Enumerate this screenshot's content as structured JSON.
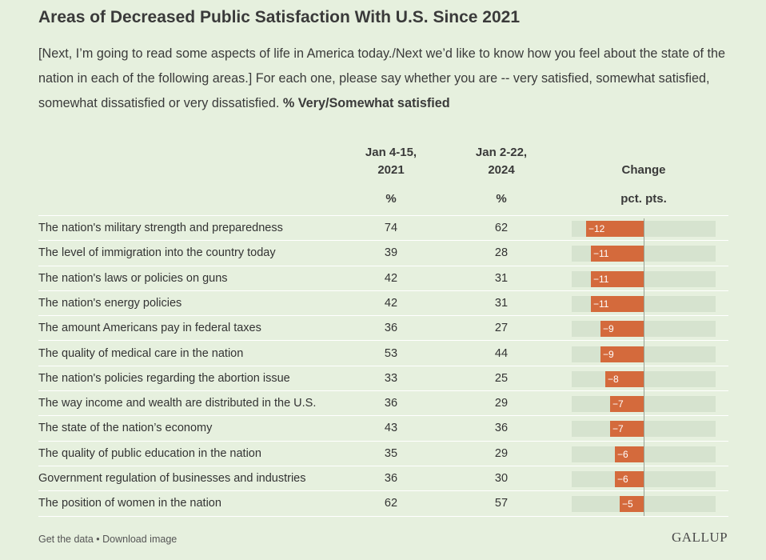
{
  "title": "Areas of Decreased Public Satisfaction With U.S. Since 2021",
  "subtitle": {
    "text": "[Next, I’m going to read some aspects of life in America today./Next we’d like to know how you feel about the state of the nation in each of the following areas.] For each one, please say whether you are -- very satisfied, somewhat satisfied, somewhat dissatisfied or very dissatisfied.",
    "bold": "% Very/Somewhat satisfied"
  },
  "columns": {
    "c1_line1": "Jan 4-15,",
    "c1_line2": "2021",
    "c1_unit": "%",
    "c2_line1": "Jan 2-22,",
    "c2_line2": "2024",
    "c2_unit": "%",
    "c3_line1": "Change",
    "c3_unit": "pct. pts."
  },
  "colors": {
    "background": "#e6f0de",
    "bar": "#d46a3c",
    "track": "#d6e3cf"
  },
  "chart_data": {
    "type": "table",
    "x_range": [
      -15,
      10
    ],
    "rows": [
      {
        "label": "The nation's military strength and preparedness",
        "v2021": "74",
        "v2024": "62",
        "change": -12,
        "change_label": "−12"
      },
      {
        "label": "The level of immigration into the country today",
        "v2021": "39",
        "v2024": "28",
        "change": -11,
        "change_label": "−11"
      },
      {
        "label": "The nation's laws or policies on guns",
        "v2021": "42",
        "v2024": "31",
        "change": -11,
        "change_label": "−11"
      },
      {
        "label": "The nation's energy policies",
        "v2021": "42",
        "v2024": "31",
        "change": -11,
        "change_label": "−11"
      },
      {
        "label": "The amount Americans pay in federal taxes",
        "v2021": "36",
        "v2024": "27",
        "change": -9,
        "change_label": "−9"
      },
      {
        "label": "The quality of medical care in the nation",
        "v2021": "53",
        "v2024": "44",
        "change": -9,
        "change_label": "−9"
      },
      {
        "label": "The nation's policies regarding the abortion issue",
        "v2021": "33",
        "v2024": "25",
        "change": -8,
        "change_label": "−8"
      },
      {
        "label": "The way income and wealth are distributed in the U.S.",
        "v2021": "36",
        "v2024": "29",
        "change": -7,
        "change_label": "−7"
      },
      {
        "label": "The state of the nation’s economy",
        "v2021": "43",
        "v2024": "36",
        "change": -7,
        "change_label": "−7"
      },
      {
        "label": "The quality of public education in the nation",
        "v2021": "35",
        "v2024": "29",
        "change": -6,
        "change_label": "−6"
      },
      {
        "label": "Government regulation of businesses and industries",
        "v2021": "36",
        "v2024": "30",
        "change": -6,
        "change_label": "−6"
      },
      {
        "label": "The position of women in the nation",
        "v2021": "62",
        "v2024": "57",
        "change": -5,
        "change_label": "−5"
      }
    ]
  },
  "footer": {
    "links": "Get the data • Download image",
    "logo": "GALLUP"
  }
}
